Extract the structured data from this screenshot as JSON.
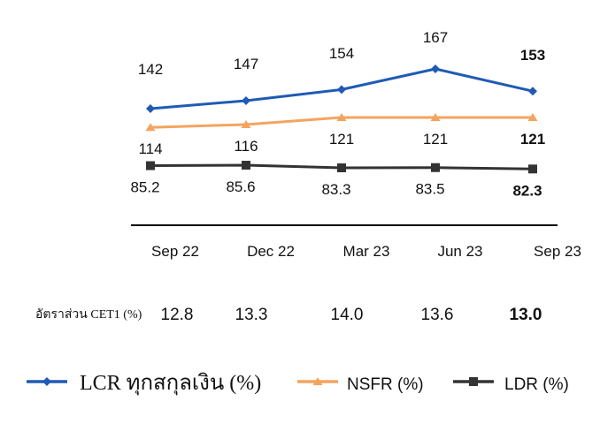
{
  "chart_data": {
    "type": "line",
    "categories": [
      "Sep 22",
      "Dec 22",
      "Mar 23",
      "Jun 23",
      "Sep 23"
    ],
    "series": [
      {
        "name": "LCR ทุกสกุลเงิน (%)",
        "values": [
          142,
          147,
          154,
          167,
          153
        ],
        "color": "#1F5BB5",
        "marker": "diamond"
      },
      {
        "name": "NSFR (%)",
        "values": [
          114,
          116,
          121,
          121,
          121
        ],
        "color": "#F4A460",
        "marker": "triangle"
      },
      {
        "name": "LDR (%)",
        "values": [
          85.2,
          85.6,
          83.3,
          83.5,
          82.3
        ],
        "color": "#333333",
        "marker": "square"
      }
    ],
    "value_labels": [
      [
        "142",
        "147",
        "154",
        "167",
        "153"
      ],
      [
        "114",
        "116",
        "121",
        "121",
        "121"
      ],
      [
        "85.2",
        "85.6",
        "83.3",
        "83.5",
        "82.3"
      ]
    ],
    "bold_last": true,
    "cet1": {
      "label": "อัตราส่วน CET1 (%)",
      "values": [
        "12.8",
        "13.3",
        "14.0",
        "13.6",
        "13.0"
      ]
    },
    "legend": {
      "placement": "bottom"
    },
    "grid": false
  }
}
